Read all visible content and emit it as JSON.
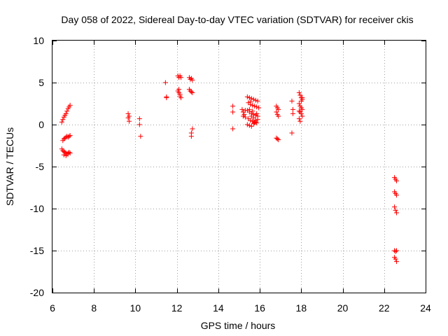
{
  "chart_data": {
    "type": "scatter",
    "title": "Day 058 of 2022, Sidereal Day-to-day VTEC variation (SDTVAR) for receiver ckis",
    "xlabel": "GPS time / hours",
    "ylabel": "SDTVAR / TECUs",
    "xlim": [
      6,
      24
    ],
    "ylim": [
      -20,
      10
    ],
    "x_ticks": [
      6,
      8,
      10,
      12,
      14,
      16,
      18,
      20,
      22,
      24
    ],
    "y_ticks": [
      -20,
      -15,
      -10,
      -5,
      0,
      5,
      10
    ],
    "grid": true,
    "marker": "+",
    "colors": {
      "points": "#ff0000",
      "grid": "#a0a0a0",
      "axes": "#000000"
    },
    "series": [
      {
        "name": "SDTVAR",
        "x": [
          6.45,
          6.5,
          6.55,
          6.6,
          6.65,
          6.7,
          6.75,
          6.8,
          6.85,
          6.5,
          6.55,
          6.6,
          6.65,
          6.7,
          6.75,
          6.8,
          6.85,
          6.45,
          6.5,
          6.55,
          6.6,
          6.65,
          6.7,
          6.75,
          6.8,
          6.85,
          6.55,
          6.65,
          6.75,
          9.65,
          9.65,
          9.7,
          9.7,
          10.2,
          10.2,
          10.25,
          11.45,
          11.5,
          11.5,
          12.05,
          12.1,
          12.15,
          12.2,
          12.05,
          12.1,
          12.15,
          12.2,
          12.1,
          12.15,
          12.6,
          12.65,
          12.7,
          12.75,
          12.6,
          12.65,
          12.7,
          12.75,
          12.75,
          12.7,
          12.7,
          14.7,
          14.7,
          14.7,
          15.15,
          15.2,
          15.25,
          15.3,
          15.2,
          15.3,
          15.4,
          15.5,
          15.6,
          15.7,
          15.8,
          15.9,
          15.45,
          15.55,
          15.65,
          15.75,
          15.85,
          15.95,
          15.4,
          15.5,
          15.6,
          15.7,
          15.8,
          15.9,
          15.45,
          15.55,
          15.65,
          15.75,
          15.85,
          15.4,
          15.5,
          15.6,
          15.7,
          15.8,
          15.9,
          15.5,
          15.6,
          15.7,
          15.8,
          15.55,
          15.65,
          15.75,
          15.85,
          16.8,
          16.85,
          16.9,
          16.8,
          16.85,
          16.9,
          16.8,
          16.85,
          16.9,
          17.55,
          17.6,
          17.6,
          17.55,
          17.9,
          17.95,
          18.0,
          18.05,
          17.9,
          17.95,
          18.0,
          18.05,
          17.95,
          18.0,
          18.05,
          17.9,
          17.95,
          18.0,
          18.05,
          17.9,
          22.5,
          22.55,
          22.6,
          22.5,
          22.55,
          22.6,
          22.5,
          22.55,
          22.6,
          22.5,
          22.55,
          22.6,
          22.5,
          22.55,
          22.6
        ],
        "y": [
          0.3,
          0.6,
          0.9,
          1.1,
          1.3,
          1.6,
          1.9,
          2.1,
          2.3,
          -1.9,
          -1.7,
          -1.6,
          -1.5,
          -1.4,
          -1.5,
          -1.4,
          -1.3,
          -2.9,
          -3.1,
          -3.2,
          -3.3,
          -3.4,
          -3.5,
          -3.4,
          -3.3,
          -3.4,
          -3.6,
          -3.7,
          -3.5,
          1.3,
          0.8,
          0.4,
          1.0,
          0.7,
          0.0,
          -1.4,
          5.0,
          3.2,
          3.3,
          5.8,
          5.6,
          5.8,
          5.6,
          4.0,
          3.8,
          3.4,
          3.2,
          4.2,
          3.6,
          5.6,
          5.4,
          5.5,
          5.3,
          4.2,
          4.0,
          3.9,
          3.8,
          -0.5,
          -1.0,
          -1.4,
          2.2,
          1.5,
          -0.5,
          1.8,
          1.5,
          1.2,
          0.9,
          1.0,
          1.7,
          3.3,
          3.2,
          3.1,
          3.0,
          2.9,
          2.8,
          2.6,
          2.4,
          2.3,
          2.2,
          2.1,
          2.0,
          1.7,
          1.5,
          1.3,
          1.2,
          1.1,
          1.0,
          0.7,
          0.5,
          0.4,
          0.3,
          0.2,
          0.0,
          -0.1,
          -0.2,
          0.1,
          0.3,
          0.6,
          1.8,
          1.0,
          0.8,
          0.5,
          2.7,
          1.6,
          0.2,
          1.3,
          2.2,
          2.0,
          1.8,
          1.5,
          1.2,
          1.0,
          -1.6,
          -1.7,
          -1.8,
          2.8,
          1.8,
          1.3,
          -1.0,
          3.8,
          3.5,
          3.2,
          3.0,
          2.5,
          2.2,
          2.0,
          1.8,
          1.5,
          1.3,
          1.0,
          0.7,
          0.4,
          2.8,
          3.2,
          1.6,
          -6.3,
          -6.5,
          -6.7,
          -8.0,
          -8.2,
          -8.4,
          -9.8,
          -10.2,
          -10.5,
          -15.0,
          -15.1,
          -15.0,
          -15.8,
          -16.0,
          -16.3
        ]
      }
    ]
  }
}
